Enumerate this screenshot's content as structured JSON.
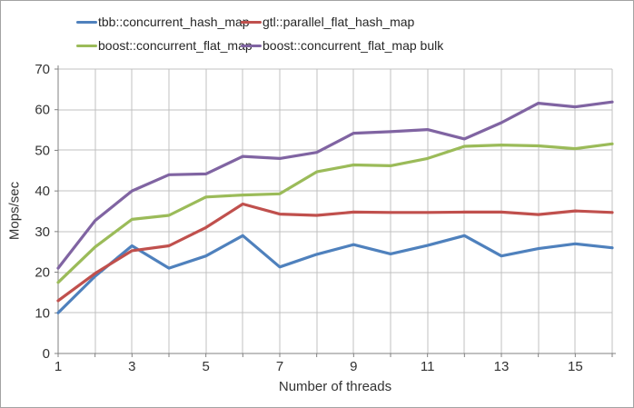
{
  "chart_data": {
    "type": "line",
    "title": "",
    "xlabel": "Number of threads",
    "ylabel": "Mops/sec",
    "x": [
      1,
      2,
      3,
      4,
      5,
      6,
      7,
      8,
      9,
      10,
      11,
      12,
      13,
      14,
      15,
      16
    ],
    "x_tick_labels": [
      1,
      3,
      5,
      7,
      9,
      11,
      13,
      15
    ],
    "y_ticks": [
      0,
      10,
      20,
      30,
      40,
      50,
      60,
      70
    ],
    "xlim": [
      1,
      16
    ],
    "ylim": [
      0,
      70
    ],
    "grid": true,
    "legend_position": "top",
    "series": [
      {
        "name": "tbb::concurrent_hash_map",
        "color": "#4F81BD",
        "values": [
          10,
          19,
          26.5,
          21,
          24,
          29,
          21.3,
          24.4,
          26.8,
          24.5,
          26.6,
          29,
          24,
          25.8,
          27,
          26
        ]
      },
      {
        "name": "gtl::parallel_flat_hash_map",
        "color": "#C0504D",
        "values": [
          13,
          19.7,
          25.3,
          26.5,
          31,
          36.8,
          34.3,
          34,
          34.8,
          34.7,
          34.7,
          34.8,
          34.8,
          34.2,
          35.1,
          34.7
        ]
      },
      {
        "name": "boost::concurrent_flat_map",
        "color": "#9BBB59",
        "values": [
          17.5,
          26.2,
          33,
          34,
          38.5,
          39,
          39.3,
          44.7,
          46.4,
          46.2,
          48,
          51,
          51.3,
          51.1,
          50.4,
          51.6
        ]
      },
      {
        "name": "boost::concurrent_flat_map bulk",
        "color": "#8064A2",
        "values": [
          21,
          32.7,
          40,
          44,
          44.2,
          48.5,
          48,
          49.5,
          54.2,
          54.6,
          55.1,
          52.8,
          56.8,
          61.6,
          60.7,
          61.9
        ]
      }
    ]
  },
  "styles": {
    "grid_color": "#c0c0c0",
    "axis_color": "#808080",
    "tick_text_color": "#333333",
    "line_width": 3.2
  }
}
